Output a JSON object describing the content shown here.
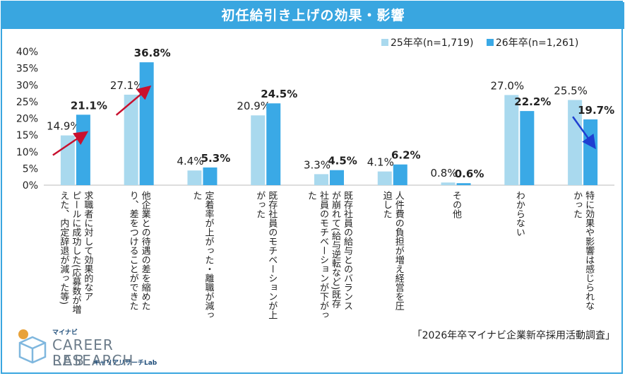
{
  "title": "初任給引き上げの効果・影響",
  "source": "「2026年卒マイナビ企業新卒採用活動調査」",
  "logo": {
    "small": "マイナビ",
    "main": "CAREER RESEARCH",
    "lab": "LAB",
    "sub": "キャリアリサーチLab"
  },
  "colors": {
    "header": "#39a6e0",
    "series25": "#a9d9ee",
    "series26": "#3aa9e6",
    "arrow_up": "#c8102e",
    "arrow_down": "#1f3fd1"
  },
  "chart_data": {
    "type": "bar",
    "title": "初任給引き上げの効果・影響",
    "ylim": [
      0,
      40
    ],
    "yticks": [
      "0%",
      "5%",
      "10%",
      "15%",
      "20%",
      "25%",
      "30%",
      "35%",
      "40%"
    ],
    "categories": [
      "求職者に対して効果的なア\nピールに成功した(応募数が増\nえた、内定辞退が減った等)",
      "他企業との待遇の差を縮めた\nり、差をつけることができた",
      "定着率が上がった・離職が減っ\nた",
      "既存社員のモチベーションが上\nがった",
      "既存社員の給与とのバランス\nが崩れて(給与逆転など)既存\n社員のモチベーションが下がっ\nた",
      "人件費の負担が増え経営を圧\n迫した",
      "その他",
      "わからない",
      "特に効果や影響は感じられな\nかった"
    ],
    "series": [
      {
        "name": "25年卒(n=1,719)",
        "values": [
          14.9,
          27.1,
          4.4,
          20.9,
          3.3,
          4.1,
          0.8,
          27.0,
          25.5
        ],
        "labels": [
          "14.9%",
          "27.1%",
          "4.4%",
          "20.9%",
          "3.3%",
          "4.1%",
          "0.8%",
          "27.0%",
          "25.5%"
        ]
      },
      {
        "name": "26年卒(n=1,261)",
        "values": [
          21.1,
          36.8,
          5.3,
          24.5,
          4.5,
          6.2,
          0.6,
          22.2,
          19.7
        ],
        "labels": [
          "21.1%",
          "36.8%",
          "5.3%",
          "24.5%",
          "4.5%",
          "6.2%",
          "0.6%",
          "22.2%",
          "19.7%"
        ]
      }
    ],
    "legend": "top-right",
    "grid": false
  }
}
